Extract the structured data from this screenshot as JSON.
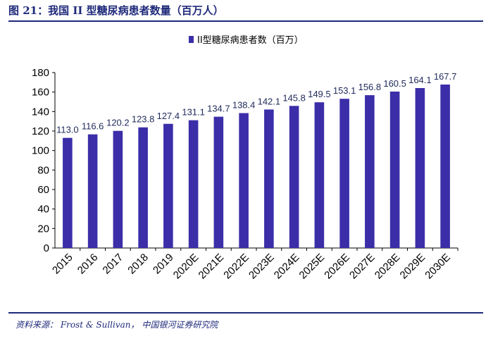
{
  "figure": {
    "title": "图 21：我国 II 型糖尿病患者数量（百万人）",
    "source": "资料来源： Frost & Sullivan， 中国银河证券研究院"
  },
  "chart_data": {
    "type": "bar",
    "legend": [
      "II型糖尿病患者数（百万）"
    ],
    "legend_position": "top-center",
    "grid": false,
    "ylim": [
      0,
      180
    ],
    "yticks": [
      0,
      20,
      40,
      60,
      80,
      100,
      120,
      140,
      160,
      180
    ],
    "categories": [
      "2015",
      "2016",
      "2017",
      "2018",
      "2019",
      "2020E",
      "2021E",
      "2022E",
      "2023E",
      "2024E",
      "2025E",
      "2026E",
      "2027E",
      "2028E",
      "2029E",
      "2030E"
    ],
    "series": [
      {
        "name": "II型糖尿病患者数（百万）",
        "color": "#3b2ea8",
        "values": [
          113.0,
          116.6,
          120.2,
          123.8,
          127.4,
          131.1,
          134.7,
          138.4,
          142.1,
          145.8,
          149.5,
          153.1,
          156.8,
          160.5,
          164.1,
          167.7
        ],
        "labels": [
          "113.0",
          "116.6",
          "120.2",
          "123.8",
          "127.4",
          "131.1",
          "134.7",
          "138.4",
          "142.1",
          "145.8",
          "149.5",
          "153.1",
          "156.8",
          "160.5",
          "164.1",
          "167.7"
        ]
      }
    ]
  }
}
